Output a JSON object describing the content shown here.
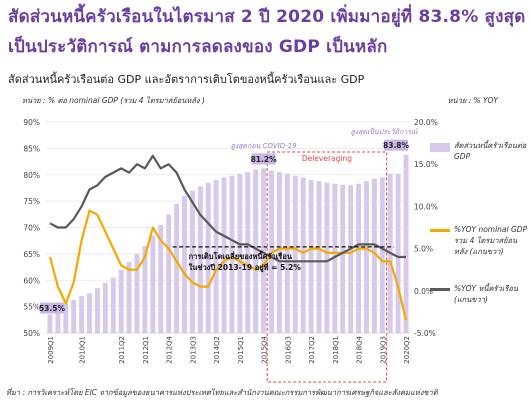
{
  "header": {
    "title_line1": "สัดส่วนหนี้ครัวเรือนในไตรมาส   2 ปี 2020 เพิ่มมาอยู่ที่  83.8% สูงสุด",
    "title_line2": "เป็นประวัติการณ์ ตามการลดลงของ   GDP เป็นหลัก",
    "chart_title": "สัดส่วนหนี้ครัวเรือนต่อ GDP  และอัตราการเติบโตของหนี้ครัวเรือนและ      GDP",
    "unit_left": "หน่วย : % ต่อ nominal GDP (รวม 4 ไตรมาสย้อนหลัง  )",
    "unit_right": "หน่วย : % YOY",
    "source": "ที่มา : การวิเคราะห์โดย     EIC จากข้อมูลของธนาคารแห่งประเทศไทยและสำนักงานคณะกรรมการพัฒนาการเศรษฐกิจและสังคมแห่งชาติ"
  },
  "chart_data": {
    "type": "bar",
    "x": [
      "2009Q1",
      "2009Q2",
      "2009Q3",
      "2009Q4",
      "2010Q1",
      "2010Q2",
      "2010Q3",
      "2010Q4",
      "2011Q1",
      "2011Q2",
      "2011Q3",
      "2011Q4",
      "2012Q1",
      "2012Q2",
      "2012Q3",
      "2012Q4",
      "2013Q1",
      "2013Q2",
      "2013Q3",
      "2013Q4",
      "2014Q1",
      "2014Q2",
      "2014Q3",
      "2014Q4",
      "2015Q1",
      "2015Q2",
      "2015Q3",
      "2015Q4",
      "2016Q1",
      "2016Q2",
      "2016Q3",
      "2016Q4",
      "2017Q1",
      "2017Q2",
      "2017Q3",
      "2017Q4",
      "2018Q1",
      "2018Q2",
      "2018Q3",
      "2018Q4",
      "2019Q1",
      "2019Q2",
      "2019Q3",
      "2019Q4",
      "2020Q1",
      "2020Q2"
    ],
    "x_tick_labels": [
      "2009Q1",
      "2010Q1",
      "2011Q2",
      "2012Q1",
      "2012Q4",
      "2013Q3",
      "2014Q2",
      "2015Q1",
      "2015Q4",
      "2016Q3",
      "2017Q2",
      "2018Q1",
      "2018Q4",
      "2019Q3",
      "2020Q2"
    ],
    "series": [
      {
        "name": "สัดส่วนหนี้ครัวเรือนต่อ GDP",
        "axis": "left",
        "values": [
          53.5,
          54.5,
          55.5,
          56.3,
          57.0,
          57.5,
          58.5,
          59.5,
          60.5,
          62.0,
          63.5,
          65.0,
          66.5,
          68.5,
          70.5,
          72.5,
          74.5,
          76.0,
          77.0,
          77.8,
          78.5,
          79.0,
          79.5,
          79.8,
          80.2,
          80.5,
          81.0,
          81.2,
          80.8,
          80.5,
          80.2,
          79.8,
          79.5,
          79.0,
          78.8,
          78.5,
          78.3,
          78.1,
          78.0,
          78.3,
          78.8,
          79.3,
          79.5,
          80.2,
          80.2,
          83.8
        ]
      },
      {
        "name": "%YOY nominal GDP รวม 4 ไตรมาสย้อนหลัง (แกนขวา)",
        "axis": "right",
        "values": [
          4.0,
          0.5,
          -1.5,
          1.0,
          6.0,
          9.5,
          9.0,
          7.0,
          5.0,
          3.0,
          2.5,
          2.5,
          4.0,
          7.5,
          6.0,
          5.0,
          3.5,
          2.0,
          1.0,
          0.5,
          0.5,
          2.5,
          3.5,
          4.0,
          3.5,
          3.0,
          2.5,
          3.0,
          4.5,
          5.0,
          5.0,
          5.0,
          4.5,
          5.0,
          5.0,
          4.5,
          4.5,
          4.5,
          4.5,
          5.0,
          5.0,
          4.5,
          3.5,
          3.5,
          0.5,
          -3.5
        ]
      },
      {
        "name": "%YOY หนี้ครัวเรือน (แกนขวา)",
        "axis": "right",
        "values": [
          8.0,
          7.5,
          7.5,
          8.5,
          10.0,
          12.0,
          12.5,
          13.5,
          14.0,
          14.5,
          14.0,
          15.0,
          14.5,
          16.0,
          14.5,
          15.0,
          14.0,
          12.0,
          10.5,
          9.0,
          8.0,
          7.0,
          6.5,
          6.0,
          5.5,
          5.5,
          5.0,
          4.5,
          4.0,
          3.5,
          3.5,
          3.5,
          3.5,
          3.5,
          3.5,
          3.5,
          4.0,
          4.5,
          5.0,
          5.5,
          5.5,
          5.5,
          5.0,
          4.5,
          4.0,
          4.0
        ]
      }
    ],
    "y_left": {
      "min": 50,
      "max": 90,
      "ticks": [
        "50%",
        "55%",
        "60%",
        "65%",
        "70%",
        "75%",
        "80%",
        "85%",
        "90%"
      ]
    },
    "y_right": {
      "min": -5,
      "max": 20,
      "ticks": [
        "-5.0%",
        "0.0%",
        "5.0%",
        "10.0%",
        "15.0%",
        "20.0%"
      ]
    },
    "grid": true,
    "legend_position": "right",
    "average_line": {
      "value": 5.2,
      "x_from": "2013Q1",
      "x_to": "2019Q4",
      "label_line1": "การเติบโตเฉลี่ยของหนี้ครัวเรือน",
      "label_line2": "ในช่วงปี 2013-19 อยู่ที่ = 5.2%"
    },
    "deleveraging_box": {
      "x_from": "2016Q1",
      "x_to": "2019Q3",
      "label": "Deleveraging"
    },
    "annotations": [
      {
        "text": "53.5%",
        "x": "2009Q1",
        "y": 53.5
      },
      {
        "text": "81.2%",
        "x": "2015Q4",
        "y": 81.2
      },
      {
        "text": "83.8%",
        "x": "2020Q2",
        "y": 83.8
      },
      {
        "text": "สูงสุดก่อน  COVID-19",
        "x": "2015Q4"
      },
      {
        "text": "สูงสุดเป็นประวัติการณ์",
        "x": "2020Q2"
      }
    ],
    "colors": {
      "bar": "#d7c9ec",
      "gdp_line": "#f5a800",
      "debt_line": "#595959",
      "box": "#e04848",
      "label_bg": "#c9b6e4"
    }
  },
  "legend": {
    "items": [
      "สัดส่วนหนี้ครัวเรือนต่อ GDP",
      "%YOY nominal GDP รวม 4 ไตรมาสย้อนหลัง (แกนขวา)",
      "%YOY หนี้ครัวเรือน (แกนขวา)"
    ]
  }
}
